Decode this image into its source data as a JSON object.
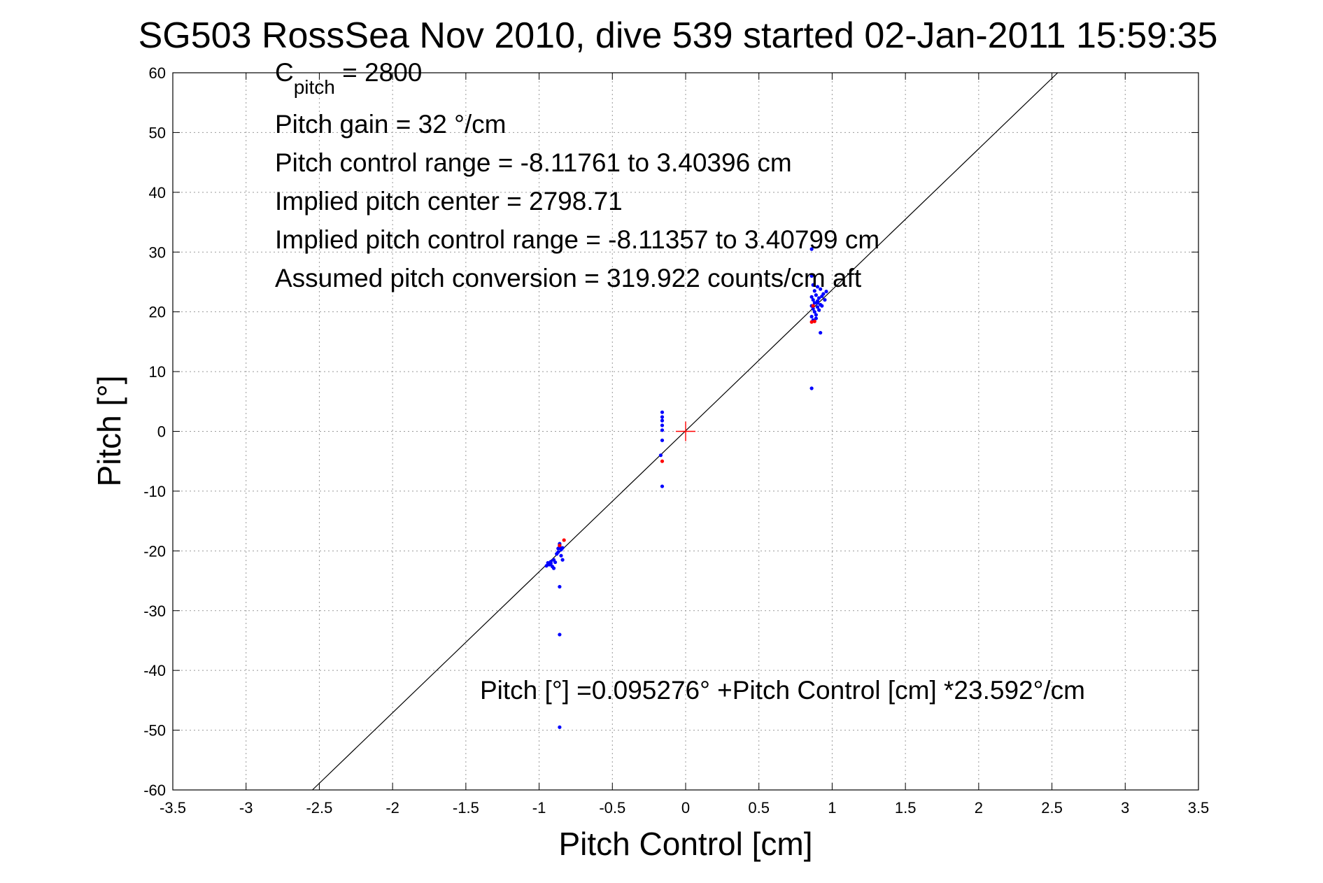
{
  "chart_data": {
    "type": "scatter",
    "title": "SG503 RossSea Nov 2010, dive 539 started 02-Jan-2011 15:59:35",
    "xlabel": "Pitch Control [cm]",
    "ylabel": "Pitch [°]",
    "xlim": [
      -3.5,
      3.5
    ],
    "ylim": [
      -60,
      60
    ],
    "xticks": [
      -3.5,
      -3,
      -2.5,
      -2,
      -1.5,
      -1,
      -0.5,
      0,
      0.5,
      1,
      1.5,
      2,
      2.5,
      3,
      3.5
    ],
    "yticks": [
      -60,
      -50,
      -40,
      -30,
      -20,
      -10,
      0,
      10,
      20,
      30,
      40,
      50,
      60
    ],
    "grid": true,
    "annotations": {
      "c_pitch_base": "C",
      "c_pitch_sub": "pitch",
      "c_pitch_value": " = 2800",
      "pitch_gain": "Pitch gain = 32 °/cm",
      "pitch_control_range": "Pitch control range = -8.11761 to 3.40396 cm",
      "implied_center": "Implied pitch center = 2798.71",
      "implied_range": "Implied pitch control range = -8.11357 to 3.40799 cm",
      "assumed_conversion": "Assumed pitch conversion = 319.922 counts/cm aft",
      "fit_equation": "Pitch [°] =0.095276° +Pitch Control [cm] *23.592°/cm"
    },
    "fit_line": {
      "intercept": 0.095276,
      "slope": 23.592,
      "color": "#000000"
    },
    "center_marker": {
      "x": 0,
      "y": 0,
      "color": "#ff0000"
    },
    "series": [
      {
        "color": "#0000ff",
        "points": [
          [
            0.86,
            30.5
          ],
          [
            0.86,
            26.0
          ],
          [
            0.87,
            24.5
          ],
          [
            0.88,
            23.5
          ],
          [
            0.9,
            24.2
          ],
          [
            0.92,
            23.8
          ],
          [
            0.94,
            23.0
          ],
          [
            0.86,
            22.5
          ],
          [
            0.87,
            22.0
          ],
          [
            0.88,
            21.5
          ],
          [
            0.89,
            22.8
          ],
          [
            0.9,
            21.8
          ],
          [
            0.91,
            22.3
          ],
          [
            0.92,
            21.2
          ],
          [
            0.93,
            22.6
          ],
          [
            0.95,
            22.0
          ],
          [
            0.86,
            21.0
          ],
          [
            0.87,
            20.5
          ],
          [
            0.88,
            20.0
          ],
          [
            0.89,
            19.5
          ],
          [
            0.9,
            20.8
          ],
          [
            0.86,
            19.2
          ],
          [
            0.87,
            18.6
          ],
          [
            0.89,
            18.9
          ],
          [
            0.9,
            21.5
          ],
          [
            0.91,
            20.3
          ],
          [
            0.93,
            21.0
          ],
          [
            0.96,
            23.4
          ],
          [
            0.92,
            16.5
          ],
          [
            0.86,
            7.2
          ],
          [
            -0.16,
            3.2
          ],
          [
            -0.16,
            2.4
          ],
          [
            -0.16,
            1.8
          ],
          [
            -0.16,
            1.0
          ],
          [
            -0.16,
            0.2
          ],
          [
            -0.16,
            -1.5
          ],
          [
            -0.17,
            -4.0
          ],
          [
            -0.16,
            -9.2
          ],
          [
            -0.86,
            -18.8
          ],
          [
            -0.86,
            -19.3
          ],
          [
            -0.85,
            -19.8
          ],
          [
            -0.87,
            -20.2
          ],
          [
            -0.86,
            -19.0
          ],
          [
            -0.84,
            -19.5
          ],
          [
            -0.88,
            -20.5
          ],
          [
            -0.85,
            -20.8
          ],
          [
            -0.87,
            -19.6
          ],
          [
            -0.9,
            -21.5
          ],
          [
            -0.92,
            -21.8
          ],
          [
            -0.93,
            -22.3
          ],
          [
            -0.91,
            -22.6
          ],
          [
            -0.94,
            -22.0
          ],
          [
            -0.9,
            -22.9
          ],
          [
            -0.95,
            -22.5
          ],
          [
            -0.89,
            -21.9
          ],
          [
            -0.92,
            -22.1
          ],
          [
            -0.84,
            -21.5
          ],
          [
            -0.86,
            -26.0
          ],
          [
            -0.86,
            -34.0
          ],
          [
            -0.86,
            -49.5
          ]
        ]
      },
      {
        "color": "#ff0000",
        "points": [
          [
            0.86,
            18.3
          ],
          [
            0.88,
            18.4
          ],
          [
            0.87,
            21.0
          ],
          [
            -0.16,
            -5.0
          ],
          [
            -0.83,
            -18.2
          ],
          [
            -0.86,
            -19.1
          ]
        ]
      }
    ]
  }
}
